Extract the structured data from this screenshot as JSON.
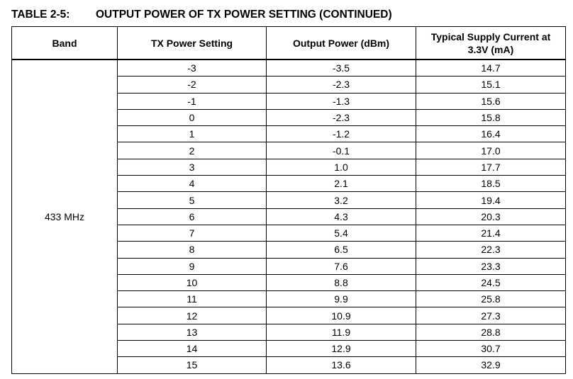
{
  "caption": {
    "number": "TABLE 2-5:",
    "title": "OUTPUT POWER OF TX POWER SETTING (CONTINUED)"
  },
  "table": {
    "headers": [
      "Band",
      "TX Power Setting",
      "Output Power (dBm)",
      "Typical Supply Current at 3.3V (mA)"
    ],
    "band": "433 MHz",
    "rows": [
      [
        "-3",
        "-3.5",
        "14.7"
      ],
      [
        "-2",
        "-2.3",
        "15.1"
      ],
      [
        "-1",
        "-1.3",
        "15.6"
      ],
      [
        "0",
        "-2.3",
        "15.8"
      ],
      [
        "1",
        "-1.2",
        "16.4"
      ],
      [
        "2",
        "-0.1",
        "17.0"
      ],
      [
        "3",
        "1.0",
        "17.7"
      ],
      [
        "4",
        "2.1",
        "18.5"
      ],
      [
        "5",
        "3.2",
        "19.4"
      ],
      [
        "6",
        "4.3",
        "20.3"
      ],
      [
        "7",
        "5.4",
        "21.4"
      ],
      [
        "8",
        "6.5",
        "22.3"
      ],
      [
        "9",
        "7.6",
        "23.3"
      ],
      [
        "10",
        "8.8",
        "24.5"
      ],
      [
        "11",
        "9.9",
        "25.8"
      ],
      [
        "12",
        "10.9",
        "27.3"
      ],
      [
        "13",
        "11.9",
        "28.8"
      ],
      [
        "14",
        "12.9",
        "30.7"
      ],
      [
        "15",
        "13.6",
        "32.9"
      ]
    ]
  }
}
